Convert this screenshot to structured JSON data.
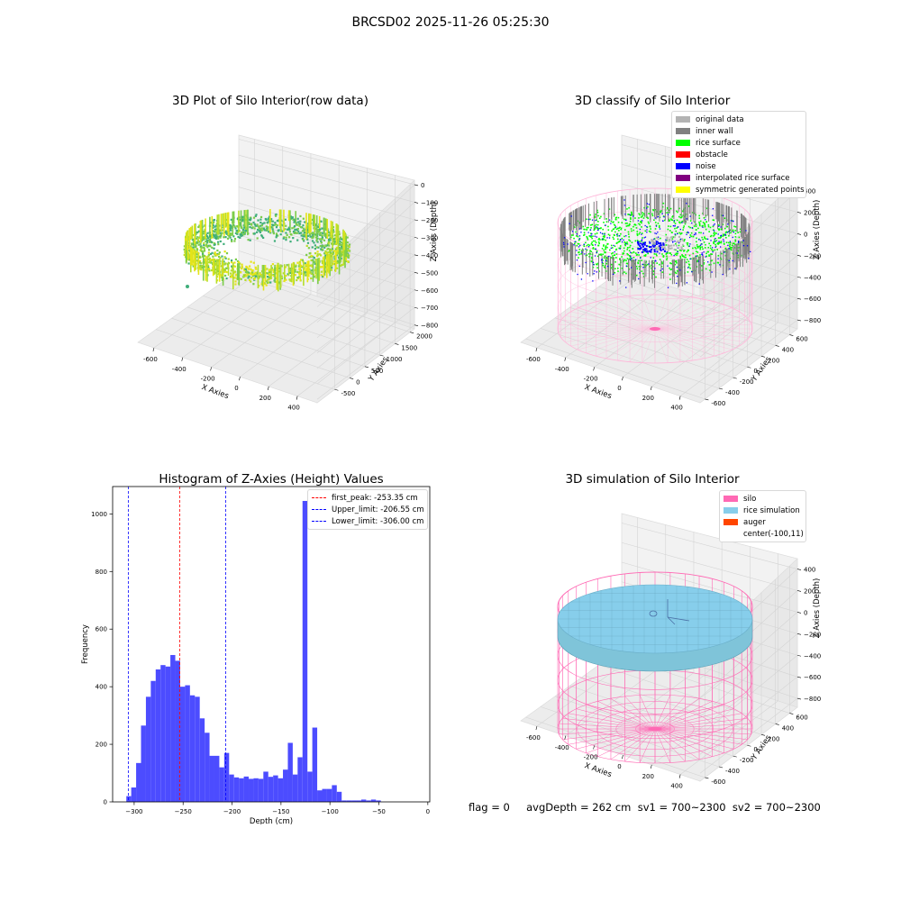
{
  "figure": {
    "suptitle": "BRCSD02 2025-11-26 05:25:30"
  },
  "panels": {
    "raw": {
      "title": "3D Plot of Silo Interior(row data)",
      "xlabel": "X Axies",
      "ylabel": "Y Axies",
      "zlabel": "Z Axies (Depth)",
      "xticks": [
        "-600",
        "-400",
        "-200",
        "0",
        "200",
        "400"
      ],
      "yticks": [
        "-500",
        "0",
        "500",
        "1000",
        "1500",
        "2000"
      ],
      "zticks": [
        "0",
        "−100",
        "−200",
        "−300",
        "−400",
        "−500",
        "−600",
        "−700",
        "−800"
      ],
      "colormap": [
        "#3fae7a",
        "#7ccd4a",
        "#b5de2b",
        "#e5e419"
      ]
    },
    "classify": {
      "title": "3D classify of Silo Interior",
      "xlabel": "X Axies",
      "ylabel": "Y Axies",
      "zlabel": "Z Axies (Depth)",
      "xticks": [
        "-600",
        "-400",
        "-200",
        "0",
        "200",
        "400"
      ],
      "yticks": [
        "-600",
        "-400",
        "-200",
        "0",
        "200",
        "400",
        "600"
      ],
      "zticks": [
        "400",
        "200",
        "0",
        "−200",
        "−400",
        "−600",
        "−800"
      ],
      "legend": [
        {
          "label": "original data",
          "color": "#b3b3b3"
        },
        {
          "label": "inner wall",
          "color": "#808080"
        },
        {
          "label": "rice surface",
          "color": "#00ff00"
        },
        {
          "label": "obstacle",
          "color": "#ff0000"
        },
        {
          "label": "noise",
          "color": "#0000ff"
        },
        {
          "label": "interpolated rice surface",
          "color": "#800080"
        },
        {
          "label": "symmetric generated points",
          "color": "#ffff00"
        }
      ]
    },
    "simulation": {
      "title": "3D simulation of Silo Interior",
      "xlabel": "X Axies",
      "ylabel": "Y Axies",
      "zlabel": "Z Axies (Depth)",
      "xticks": [
        "-600",
        "-400",
        "-200",
        "0",
        "200",
        "400"
      ],
      "yticks": [
        "-600",
        "-400",
        "-200",
        "0",
        "200",
        "400",
        "600"
      ],
      "zticks": [
        "400",
        "200",
        "0",
        "−200",
        "−400",
        "−600",
        "−800"
      ],
      "legend": [
        {
          "label": "silo",
          "color": "#ff69b4"
        },
        {
          "label": "rice simulation",
          "color": "#87ceeb"
        },
        {
          "label": "auger",
          "color": "#ff4500"
        },
        {
          "label": "center(-100,11)",
          "color": ""
        }
      ]
    }
  },
  "status_line": "flag = 0     avgDepth = 262 cm  sv1 = 700~2300  sv2 = 700~2300",
  "chart_data": [
    {
      "type": "histogram",
      "title": "Histogram of Z-Axies (Height) Values",
      "xlabel": "Depth (cm)",
      "ylabel": "Frequency",
      "xlim": [
        -322,
        2
      ],
      "ylim": [
        0,
        1095
      ],
      "xticks": [
        -300,
        -250,
        -200,
        -150,
        -100,
        -50,
        0
      ],
      "yticks": [
        0,
        200,
        400,
        600,
        800,
        1000
      ],
      "bar_color": "#4c4cff",
      "bin_width": 5,
      "bin_start": -308,
      "counts": [
        20,
        50,
        135,
        265,
        365,
        420,
        460,
        475,
        470,
        510,
        490,
        400,
        405,
        370,
        365,
        290,
        240,
        160,
        160,
        120,
        170,
        95,
        85,
        82,
        88,
        80,
        82,
        80,
        105,
        87,
        92,
        82,
        112,
        205,
        95,
        155,
        1045,
        105,
        258,
        40,
        45,
        45,
        58,
        35,
        5,
        5,
        5,
        5,
        8,
        5,
        8,
        5
      ],
      "lines": [
        {
          "label": "first_peak: -253.35 cm",
          "x": -253.35,
          "color": "#ff0000"
        },
        {
          "label": "Upper_limit: -206.55 cm",
          "x": -206.55,
          "color": "#0000ff"
        },
        {
          "label": "Lower_limit: -306.00 cm",
          "x": -306.0,
          "color": "#0000ff"
        }
      ]
    }
  ]
}
